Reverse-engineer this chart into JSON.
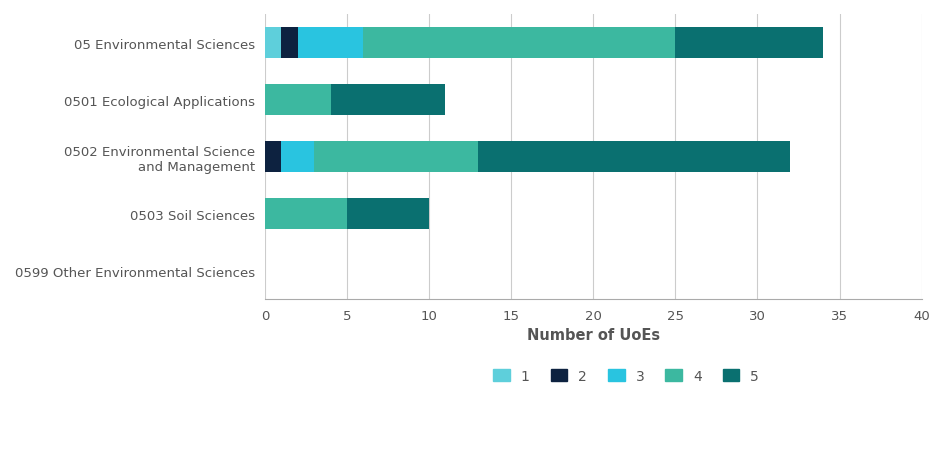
{
  "categories": [
    "05 Environmental Sciences",
    "0501 Ecological Applications",
    "0502 Environmental Science\nand Management",
    "0503 Soil Sciences",
    "0599 Other Environmental Sciences"
  ],
  "ratings": [
    "1",
    "2",
    "3",
    "4",
    "5"
  ],
  "colors": [
    "#5ecfdb",
    "#0d2240",
    "#29c4e0",
    "#3cb8a0",
    "#0a7070"
  ],
  "data": {
    "1": [
      1,
      0,
      0,
      0,
      0
    ],
    "2": [
      1,
      0,
      1,
      0,
      0
    ],
    "3": [
      4,
      0,
      2,
      0,
      0
    ],
    "4": [
      19,
      4,
      10,
      5,
      0
    ],
    "5": [
      9,
      7,
      19,
      5,
      0
    ]
  },
  "xlabel": "Number of UoEs",
  "xlim": [
    0,
    40
  ],
  "xticks": [
    0,
    5,
    10,
    15,
    20,
    25,
    30,
    35,
    40
  ],
  "grid_color": "#cccccc",
  "bar_height": 0.55,
  "figsize": [
    9.45,
    4.6
  ],
  "dpi": 100,
  "legend_labels": [
    "1",
    "2",
    "3",
    "4",
    "5"
  ],
  "text_color": "#555555",
  "spine_color": "#aaaaaa",
  "background_color": "#ffffff"
}
